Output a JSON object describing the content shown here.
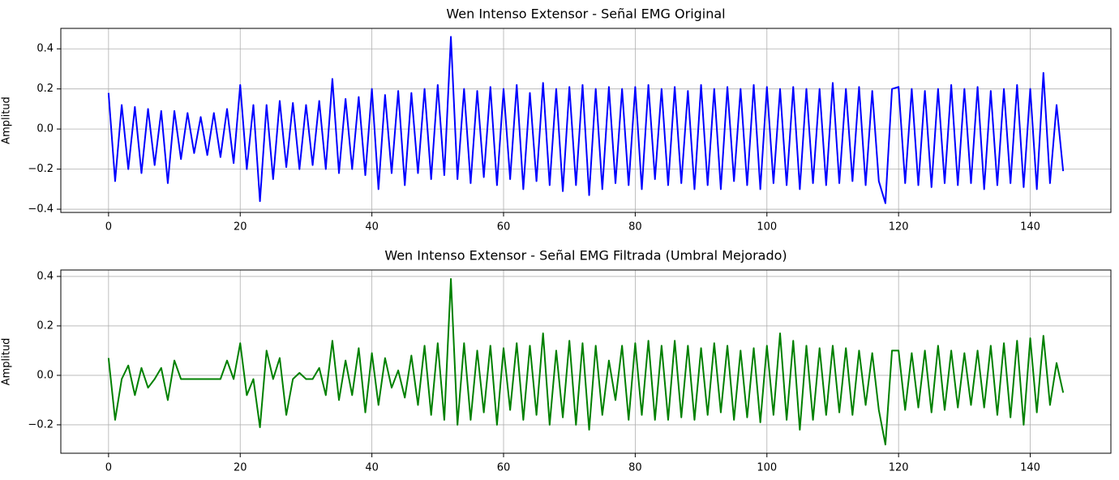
{
  "chart_data": [
    {
      "type": "line",
      "title": "Wen Intenso Extensor - Señal EMG Original",
      "y_label": "Amplitud",
      "color": "#0000ff",
      "grid": true,
      "xlim": [
        -7.25,
        152.25
      ],
      "xticks": [
        0,
        20,
        40,
        60,
        80,
        100,
        120,
        140
      ],
      "ylim": [
        -0.416,
        0.502
      ],
      "yticks": [
        {
          "value": -0.4,
          "label": "−0.4"
        },
        {
          "value": -0.2,
          "label": "−0.2"
        },
        {
          "value": 0,
          "label": "0.0"
        },
        0.2,
        0.4
      ],
      "x": [
        0,
        1,
        2,
        3,
        4,
        5,
        6,
        7,
        8,
        9,
        10,
        11,
        12,
        13,
        14,
        15,
        16,
        17,
        18,
        19,
        20,
        21,
        22,
        23,
        24,
        25,
        26,
        27,
        28,
        29,
        30,
        31,
        32,
        33,
        34,
        35,
        36,
        37,
        38,
        39,
        40,
        41,
        42,
        43,
        44,
        45,
        46,
        47,
        48,
        49,
        50,
        51,
        52,
        53,
        54,
        55,
        56,
        57,
        58,
        59,
        60,
        61,
        62,
        63,
        64,
        65,
        66,
        67,
        68,
        69,
        70,
        71,
        72,
        73,
        74,
        75,
        76,
        77,
        78,
        79,
        80,
        81,
        82,
        83,
        84,
        85,
        86,
        87,
        88,
        89,
        90,
        91,
        92,
        93,
        94,
        95,
        96,
        97,
        98,
        99,
        100,
        101,
        102,
        103,
        104,
        105,
        106,
        107,
        108,
        109,
        110,
        111,
        112,
        113,
        114,
        115,
        116,
        117,
        118,
        119,
        120,
        121,
        122,
        123,
        124,
        125,
        126,
        127,
        128,
        129,
        130,
        131,
        132,
        133,
        134,
        135,
        136,
        137,
        138,
        139,
        140,
        141,
        142,
        143,
        144,
        145
      ],
      "values": [
        0.18,
        -0.26,
        0.12,
        -0.2,
        0.11,
        -0.22,
        0.1,
        -0.18,
        0.09,
        -0.27,
        0.09,
        -0.15,
        0.08,
        -0.12,
        0.06,
        -0.13,
        0.08,
        -0.14,
        0.1,
        -0.17,
        0.22,
        -0.2,
        0.12,
        -0.36,
        0.12,
        -0.25,
        0.14,
        -0.19,
        0.13,
        -0.2,
        0.12,
        -0.18,
        0.14,
        -0.2,
        0.25,
        -0.22,
        0.15,
        -0.2,
        0.16,
        -0.23,
        0.2,
        -0.3,
        0.17,
        -0.22,
        0.19,
        -0.28,
        0.18,
        -0.22,
        0.2,
        -0.25,
        0.22,
        -0.23,
        0.46,
        -0.25,
        0.2,
        -0.27,
        0.19,
        -0.24,
        0.21,
        -0.28,
        0.2,
        -0.25,
        0.22,
        -0.3,
        0.18,
        -0.26,
        0.23,
        -0.28,
        0.2,
        -0.31,
        0.21,
        -0.28,
        0.22,
        -0.33,
        0.2,
        -0.3,
        0.21,
        -0.27,
        0.2,
        -0.28,
        0.21,
        -0.3,
        0.22,
        -0.25,
        0.2,
        -0.28,
        0.21,
        -0.27,
        0.19,
        -0.3,
        0.22,
        -0.28,
        0.2,
        -0.3,
        0.21,
        -0.26,
        0.2,
        -0.28,
        0.22,
        -0.3,
        0.21,
        -0.27,
        0.2,
        -0.28,
        0.21,
        -0.3,
        0.2,
        -0.27,
        0.2,
        -0.28,
        0.23,
        -0.27,
        0.2,
        -0.26,
        0.21,
        -0.28,
        0.19,
        -0.26,
        -0.37,
        0.2,
        0.21,
        -0.27,
        0.2,
        -0.28,
        0.19,
        -0.29,
        0.2,
        -0.27,
        0.22,
        -0.28,
        0.2,
        -0.27,
        0.21,
        -0.3,
        0.19,
        -0.28,
        0.2,
        -0.27,
        0.22,
        -0.29,
        0.2,
        -0.3,
        0.28,
        -0.27,
        0.12,
        -0.21
      ]
    },
    {
      "type": "line",
      "title": "Wen Intenso Extensor - Señal EMG Filtrada (Umbral Mejorado)",
      "y_label": "Amplitud",
      "color": "#008000",
      "grid": true,
      "xlim": [
        -7.25,
        152.25
      ],
      "xticks": [
        0,
        20,
        40,
        60,
        80,
        100,
        120,
        140
      ],
      "ylim": [
        -0.315,
        0.426
      ],
      "yticks": [
        {
          "value": -0.2,
          "label": "−0.2"
        },
        {
          "value": 0,
          "label": "0.0"
        },
        0.2,
        0.4
      ],
      "x": [
        0,
        1,
        2,
        3,
        4,
        5,
        6,
        7,
        8,
        9,
        10,
        11,
        12,
        13,
        14,
        15,
        16,
        17,
        18,
        19,
        20,
        21,
        22,
        23,
        24,
        25,
        26,
        27,
        28,
        29,
        30,
        31,
        32,
        33,
        34,
        35,
        36,
        37,
        38,
        39,
        40,
        41,
        42,
        43,
        44,
        45,
        46,
        47,
        48,
        49,
        50,
        51,
        52,
        53,
        54,
        55,
        56,
        57,
        58,
        59,
        60,
        61,
        62,
        63,
        64,
        65,
        66,
        67,
        68,
        69,
        70,
        71,
        72,
        73,
        74,
        75,
        76,
        77,
        78,
        79,
        80,
        81,
        82,
        83,
        84,
        85,
        86,
        87,
        88,
        89,
        90,
        91,
        92,
        93,
        94,
        95,
        96,
        97,
        98,
        99,
        100,
        101,
        102,
        103,
        104,
        105,
        106,
        107,
        108,
        109,
        110,
        111,
        112,
        113,
        114,
        115,
        116,
        117,
        118,
        119,
        120,
        121,
        122,
        123,
        124,
        125,
        126,
        127,
        128,
        129,
        130,
        131,
        132,
        133,
        134,
        135,
        136,
        137,
        138,
        139,
        140,
        141,
        142,
        143,
        144,
        145
      ],
      "values": [
        0.07,
        -0.18,
        -0.015,
        0.04,
        -0.08,
        0.03,
        -0.05,
        -0.015,
        0.03,
        -0.1,
        0.06,
        -0.015,
        -0.015,
        -0.015,
        -0.015,
        -0.015,
        -0.015,
        -0.015,
        0.06,
        -0.015,
        0.13,
        -0.08,
        -0.015,
        -0.21,
        0.1,
        -0.015,
        0.07,
        -0.16,
        -0.015,
        0.01,
        -0.015,
        -0.015,
        0.03,
        -0.08,
        0.14,
        -0.1,
        0.06,
        -0.08,
        0.11,
        -0.15,
        0.09,
        -0.12,
        0.07,
        -0.05,
        0.02,
        -0.09,
        0.08,
        -0.12,
        0.12,
        -0.16,
        0.13,
        -0.18,
        0.39,
        -0.2,
        0.13,
        -0.18,
        0.1,
        -0.15,
        0.12,
        -0.2,
        0.11,
        -0.14,
        0.13,
        -0.18,
        0.12,
        -0.16,
        0.17,
        -0.2,
        0.1,
        -0.17,
        0.14,
        -0.2,
        0.13,
        -0.22,
        0.12,
        -0.16,
        0.06,
        -0.1,
        0.12,
        -0.18,
        0.13,
        -0.16,
        0.14,
        -0.18,
        0.12,
        -0.18,
        0.14,
        -0.17,
        0.12,
        -0.18,
        0.11,
        -0.16,
        0.13,
        -0.15,
        0.12,
        -0.18,
        0.1,
        -0.17,
        0.11,
        -0.19,
        0.12,
        -0.16,
        0.17,
        -0.18,
        0.14,
        -0.22,
        0.12,
        -0.18,
        0.11,
        -0.16,
        0.12,
        -0.15,
        0.11,
        -0.16,
        0.1,
        -0.12,
        0.09,
        -0.14,
        -0.28,
        0.1,
        0.1,
        -0.14,
        0.09,
        -0.13,
        0.1,
        -0.15,
        0.12,
        -0.14,
        0.1,
        -0.13,
        0.09,
        -0.12,
        0.1,
        -0.13,
        0.12,
        -0.16,
        0.13,
        -0.17,
        0.14,
        -0.2,
        0.15,
        -0.15,
        0.16,
        -0.12,
        0.05,
        -0.07
      ]
    }
  ]
}
